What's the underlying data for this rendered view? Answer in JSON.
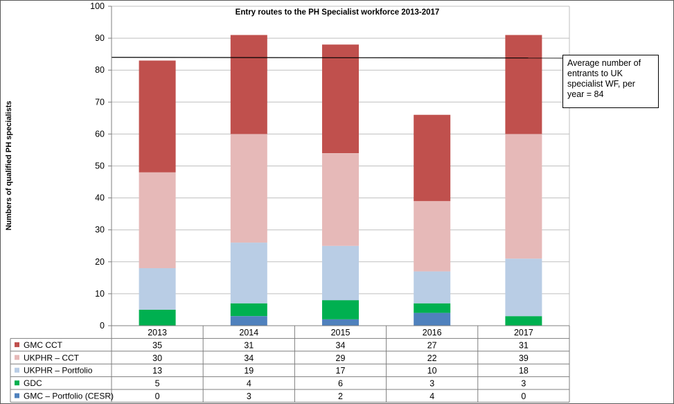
{
  "chart_data": {
    "type": "bar",
    "stacked": true,
    "title": "Entry routes to the PH Specialist workforce 2013-2017",
    "ylabel": "Numbers of qualified PH specialists",
    "xlabel": "",
    "ylim": [
      0,
      100
    ],
    "yticks": [
      "0",
      "10",
      "20",
      "30",
      "40",
      "50",
      "60",
      "70",
      "80",
      "90",
      "100"
    ],
    "grid": true,
    "categories": [
      "2013",
      "2014",
      "2015",
      "2016",
      "2017"
    ],
    "series": [
      {
        "name": "GMC – Portfolio (CESR)",
        "color": "#4f81bd",
        "values": [
          "0",
          "3",
          "2",
          "4",
          "0"
        ]
      },
      {
        "name": "GDC",
        "color": "#00b050",
        "values": [
          "5",
          "4",
          "6",
          "3",
          "3"
        ]
      },
      {
        "name": "UKPHR – Portfolio",
        "color": "#b9cde5",
        "values": [
          "13",
          "19",
          "17",
          "10",
          "18"
        ]
      },
      {
        "name": "UKPHR – CCT",
        "color": "#e6b9b8",
        "values": [
          "30",
          "34",
          "29",
          "22",
          "39"
        ]
      },
      {
        "name": "GMC CCT",
        "color": "#c0504d",
        "values": [
          "35",
          "31",
          "34",
          "27",
          "31"
        ]
      }
    ],
    "reference_line": {
      "value": 84,
      "label": "Average number of entrants to UK specialist  WF, per year = 84"
    }
  }
}
